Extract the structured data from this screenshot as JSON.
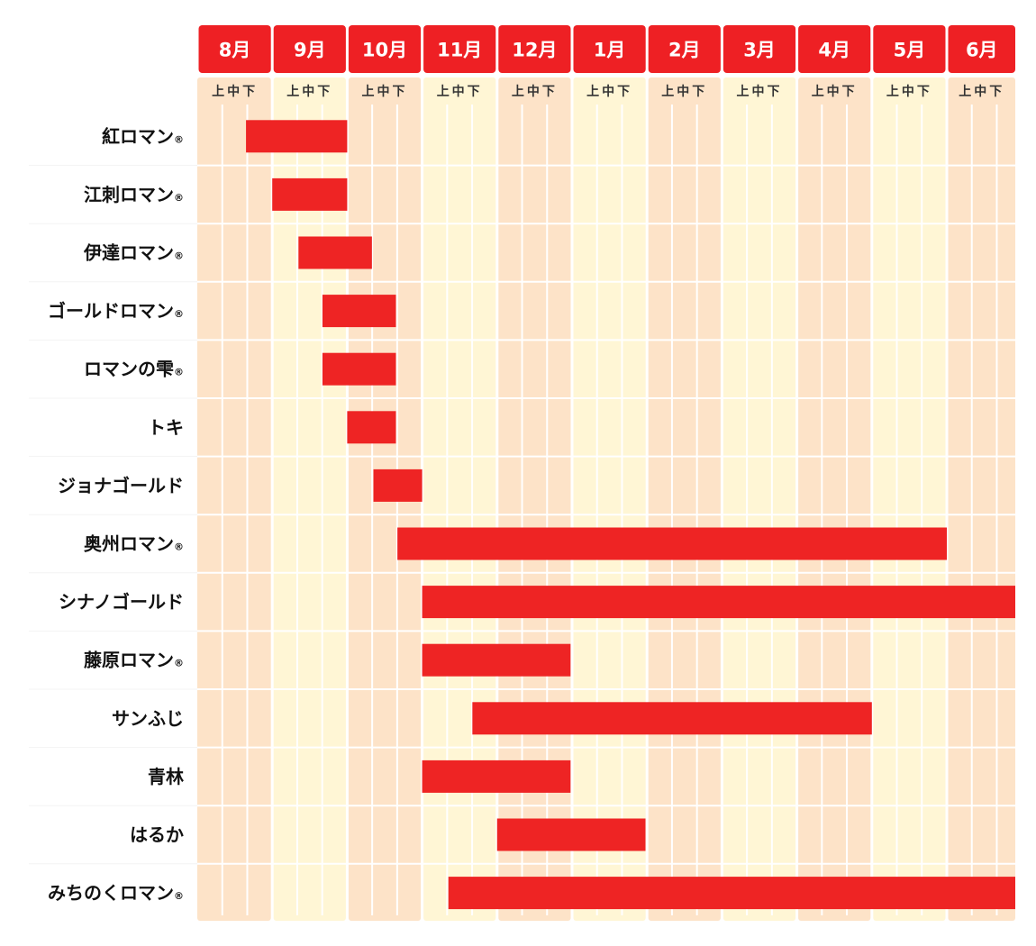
{
  "chart_data": {
    "type": "gantt",
    "months": [
      "8月",
      "9月",
      "10月",
      "11月",
      "12月",
      "1月",
      "2月",
      "3月",
      "4月",
      "5月",
      "6月"
    ],
    "periods": [
      "上",
      "中",
      "下"
    ],
    "registered_mark": "®",
    "varieties": [
      {
        "name": "紅ロマン",
        "registered": true,
        "start": 0.65,
        "end": 2.0
      },
      {
        "name": "江刺ロマン",
        "registered": true,
        "start": 1.0,
        "end": 2.0
      },
      {
        "name": "伊達ロマン",
        "registered": true,
        "start": 1.35,
        "end": 2.33
      },
      {
        "name": "ゴールドロマン",
        "registered": true,
        "start": 1.67,
        "end": 2.65
      },
      {
        "name": "ロマンの雫",
        "registered": true,
        "start": 1.67,
        "end": 2.65
      },
      {
        "name": "トキ",
        "registered": false,
        "start": 2.0,
        "end": 2.65
      },
      {
        "name": "ジョナゴールド",
        "registered": false,
        "start": 2.35,
        "end": 3.0
      },
      {
        "name": "奥州ロマン",
        "registered": true,
        "start": 2.67,
        "end": 10.0
      },
      {
        "name": "シナノゴールド",
        "registered": false,
        "start": 3.0,
        "end": 11.0
      },
      {
        "name": "藤原ロマン",
        "registered": true,
        "start": 3.0,
        "end": 4.98
      },
      {
        "name": "サンふじ",
        "registered": false,
        "start": 3.67,
        "end": 9.0
      },
      {
        "name": "青林",
        "registered": false,
        "start": 3.0,
        "end": 4.98
      },
      {
        "name": "はるか",
        "registered": false,
        "start": 4.0,
        "end": 5.98
      },
      {
        "name": "みちのくロマン",
        "registered": true,
        "start": 3.35,
        "end": 11.0
      }
    ],
    "colors": {
      "header": "#ee2024",
      "bar": "#ee2424",
      "column_odd": "#fde3c8",
      "column_even": "#fff6d5",
      "row_divider": "#ffffff",
      "tick_line": "#ffffff"
    }
  }
}
